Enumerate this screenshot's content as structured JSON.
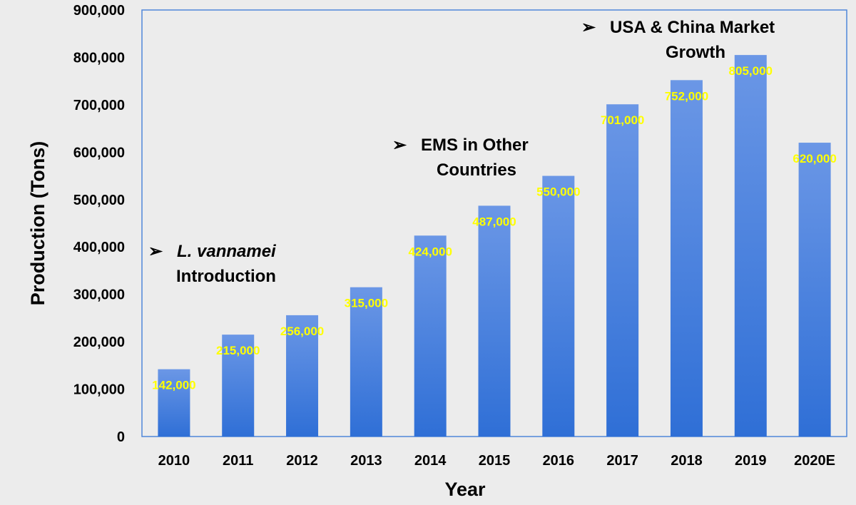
{
  "chart_data": {
    "type": "bar",
    "title": "",
    "xlabel": "Year",
    "ylabel": "Production (Tons)",
    "categories": [
      "2010",
      "2011",
      "2012",
      "2013",
      "2014",
      "2015",
      "2016",
      "2017",
      "2018",
      "2019",
      "2020E"
    ],
    "values": [
      142000,
      215000,
      256000,
      315000,
      424000,
      487000,
      550000,
      701000,
      752000,
      805000,
      620000
    ],
    "value_labels": [
      "142,000",
      "215,000",
      "256,000",
      "315,000",
      "424,000",
      "487,000",
      "550,000",
      "701,000",
      "752,000",
      "805,000",
      "620,000"
    ],
    "ylim": [
      0,
      900000
    ],
    "yticks": [
      0,
      100000,
      200000,
      300000,
      400000,
      500000,
      600000,
      700000,
      800000,
      900000
    ],
    "ytick_labels": [
      "0",
      "100,000",
      "200,000",
      "300,000",
      "400,000",
      "500,000",
      "600,000",
      "700,000",
      "800,000",
      "900,000"
    ],
    "grid": false,
    "colors": {
      "bar_top": "#6b97e6",
      "bar_bottom": "#2f6fd6",
      "label": "#ffff00",
      "plot_border": "#4f86d9",
      "plot_bg": "#ececec"
    },
    "annotations": [
      {
        "id": "vannamei",
        "bullet": "➢",
        "line1": "L. vannamei",
        "line2": "Introduction",
        "italic_line1": true
      },
      {
        "id": "ems",
        "bullet": "➢",
        "line1": "EMS in Other",
        "line2": "Countries",
        "italic_line1": false
      },
      {
        "id": "usa-china",
        "bullet": "➢",
        "line1": "USA & China Market",
        "line2": "Growth",
        "italic_line1": false
      }
    ]
  }
}
